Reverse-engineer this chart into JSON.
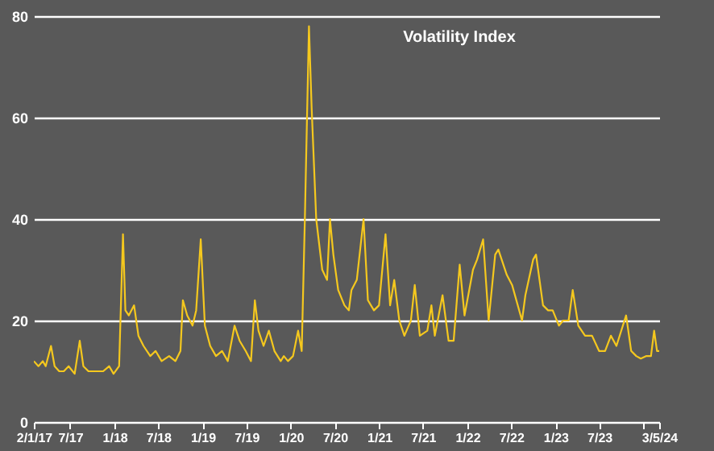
{
  "chart_data": {
    "type": "line",
    "title": "Volatility Index",
    "xlim": [
      "2017-02-01",
      "2024-03-05"
    ],
    "xticks": [
      {
        "value": "2017-02-01",
        "label": "2/1/17"
      },
      {
        "value": "2017-07-01",
        "label": "7/17"
      },
      {
        "value": "2018-01-01",
        "label": "1/18"
      },
      {
        "value": "2018-07-01",
        "label": "7/18"
      },
      {
        "value": "2019-01-01",
        "label": "1/19"
      },
      {
        "value": "2019-07-01",
        "label": "7/19"
      },
      {
        "value": "2020-01-01",
        "label": "1/20"
      },
      {
        "value": "2020-07-01",
        "label": "7/20"
      },
      {
        "value": "2021-01-01",
        "label": "1/21"
      },
      {
        "value": "2021-07-01",
        "label": "7/21"
      },
      {
        "value": "2022-01-01",
        "label": "1/22"
      },
      {
        "value": "2022-07-01",
        "label": "7/22"
      },
      {
        "value": "2023-01-01",
        "label": "1/23"
      },
      {
        "value": "2023-07-01",
        "label": "7/23"
      },
      {
        "value": "2024-01-01",
        "label": null
      },
      {
        "value": "2024-03-05",
        "label": "3/5/24"
      }
    ],
    "ylim": [
      0,
      80
    ],
    "yticks": [
      0,
      20,
      40,
      60,
      80
    ],
    "grid": "y",
    "marker": "none",
    "line_style": "solid",
    "series": [
      {
        "color": "#f5c81e",
        "x": [
          "2017-02-01",
          "2017-02-20",
          "2017-03-10",
          "2017-03-22",
          "2017-04-13",
          "2017-04-28",
          "2017-05-17",
          "2017-06-05",
          "2017-06-25",
          "2017-07-20",
          "2017-08-10",
          "2017-08-25",
          "2017-09-15",
          "2017-10-05",
          "2017-10-30",
          "2017-11-15",
          "2017-12-10",
          "2017-12-28",
          "2018-01-20",
          "2018-02-05",
          "2018-02-15",
          "2018-03-01",
          "2018-03-23",
          "2018-04-10",
          "2018-05-01",
          "2018-05-29",
          "2018-06-20",
          "2018-07-15",
          "2018-08-15",
          "2018-09-10",
          "2018-10-01",
          "2018-10-11",
          "2018-10-29",
          "2018-11-20",
          "2018-12-05",
          "2018-12-24",
          "2019-01-10",
          "2019-02-01",
          "2019-02-25",
          "2019-03-22",
          "2019-04-15",
          "2019-05-13",
          "2019-06-03",
          "2019-06-28",
          "2019-07-20",
          "2019-08-05",
          "2019-08-20",
          "2019-09-10",
          "2019-10-02",
          "2019-10-25",
          "2019-11-20",
          "2019-12-03",
          "2019-12-20",
          "2020-01-10",
          "2020-01-31",
          "2020-02-15",
          "2020-02-28",
          "2020-03-16",
          "2020-03-27",
          "2020-04-15",
          "2020-05-10",
          "2020-05-30",
          "2020-06-11",
          "2020-06-25",
          "2020-07-15",
          "2020-08-10",
          "2020-08-28",
          "2020-09-08",
          "2020-09-30",
          "2020-10-28",
          "2020-11-15",
          "2020-12-10",
          "2020-12-31",
          "2021-01-27",
          "2021-02-15",
          "2021-03-04",
          "2021-03-25",
          "2021-04-15",
          "2021-05-12",
          "2021-05-28",
          "2021-06-18",
          "2021-07-19",
          "2021-08-05",
          "2021-08-19",
          "2021-09-20",
          "2021-10-15",
          "2021-11-05",
          "2021-11-30",
          "2021-12-20",
          "2022-01-24",
          "2022-02-10",
          "2022-03-07",
          "2022-03-30",
          "2022-04-26",
          "2022-05-09",
          "2022-06-13",
          "2022-07-05",
          "2022-08-15",
          "2022-08-29",
          "2022-09-30",
          "2022-10-12",
          "2022-11-10",
          "2022-12-01",
          "2022-12-20",
          "2023-01-15",
          "2023-02-01",
          "2023-02-24",
          "2023-03-13",
          "2023-04-05",
          "2023-05-03",
          "2023-06-01",
          "2023-06-30",
          "2023-07-25",
          "2023-08-18",
          "2023-09-10",
          "2023-10-20",
          "2023-11-10",
          "2023-12-01",
          "2023-12-20",
          "2024-01-12",
          "2024-01-31",
          "2024-02-13",
          "2024-02-25",
          "2024-03-05"
        ],
        "values": [
          12,
          11,
          12,
          11,
          15,
          11,
          10,
          10,
          11,
          9.5,
          16,
          11,
          10,
          10,
          10,
          10,
          11,
          9.5,
          11,
          37,
          22,
          21,
          23,
          17,
          15,
          13,
          14,
          12,
          13,
          12,
          14,
          24,
          21,
          19,
          22,
          36,
          19,
          15,
          13,
          14,
          12,
          19,
          16,
          14,
          12,
          24,
          18,
          15,
          18,
          14,
          12,
          13,
          12,
          13,
          18,
          14,
          40,
          78,
          62,
          40,
          30,
          28,
          40,
          33,
          26,
          23,
          22,
          26,
          28,
          40,
          24,
          22,
          23,
          37,
          23,
          28,
          20,
          17,
          20,
          27,
          17,
          18,
          23,
          17,
          25,
          16,
          16,
          31,
          21,
          30,
          32,
          36,
          20,
          33,
          34,
          29,
          27,
          20,
          25,
          32,
          33,
          23,
          22,
          22,
          19,
          20,
          20,
          26,
          19,
          17,
          17,
          14,
          14,
          17,
          15,
          21,
          14,
          13,
          12.5,
          13,
          13,
          18,
          14,
          14
        ]
      }
    ]
  }
}
